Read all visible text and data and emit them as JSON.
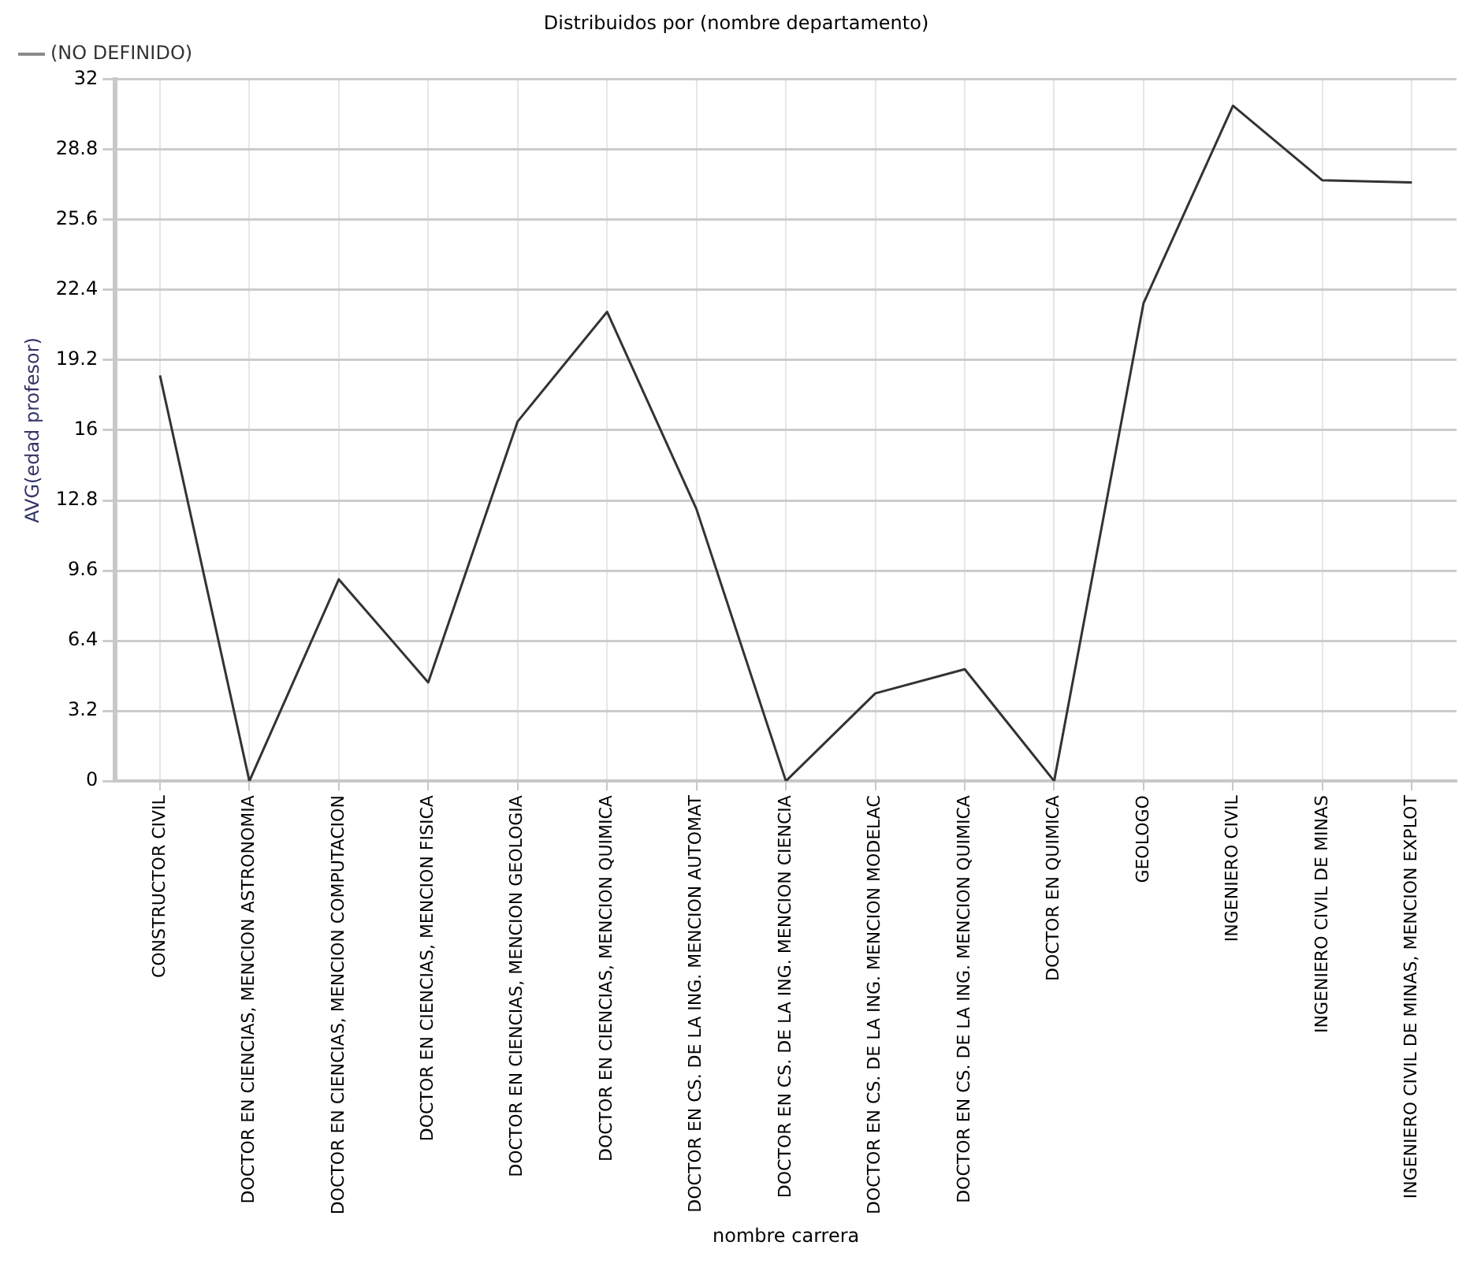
{
  "chart_data": {
    "type": "line",
    "title": "Distribuidos por (nombre departamento)",
    "xlabel": "nombre carrera",
    "ylabel": "AVG(edad profesor)",
    "categories": [
      "CONSTRUCTOR CIVIL",
      "DOCTOR EN CIENCIAS, MENCION ASTRONOMIA",
      "DOCTOR EN CIENCIAS, MENCION COMPUTACION",
      "DOCTOR EN CIENCIAS, MENCION FISICA",
      "DOCTOR EN CIENCIAS, MENCION GEOLOGIA",
      "DOCTOR EN CIENCIAS, MENCION QUIMICA",
      "DOCTOR EN CS. DE LA ING. MENCION AUTOMAT",
      "DOCTOR EN CS. DE LA ING. MENCION CIENCIA",
      "DOCTOR EN CS. DE LA ING. MENCION MODELAC",
      "DOCTOR EN CS. DE LA ING. MENCION QUIMICA",
      "DOCTOR EN QUIMICA",
      "GEOLOGO",
      "INGENIERO CIVIL",
      "INGENIERO CIVIL DE MINAS",
      "INGENIERO CIVIL DE MINAS, MENCION EXPLOT"
    ],
    "series": [
      {
        "name": "(NO DEFINIDO)",
        "color": "#333333",
        "values": [
          18.5,
          0,
          9.2,
          4.5,
          16.4,
          21.4,
          12.4,
          0,
          4.0,
          5.1,
          0,
          21.8,
          30.8,
          27.4,
          27.3
        ]
      }
    ],
    "ylim": [
      0,
      32
    ],
    "yticks": [
      0,
      3.2,
      6.4,
      9.6,
      12.8,
      16,
      19.2,
      22.4,
      25.6,
      28.8,
      32
    ],
    "grid": true,
    "legend": "top left",
    "marker": "none",
    "line_style": "solid"
  }
}
